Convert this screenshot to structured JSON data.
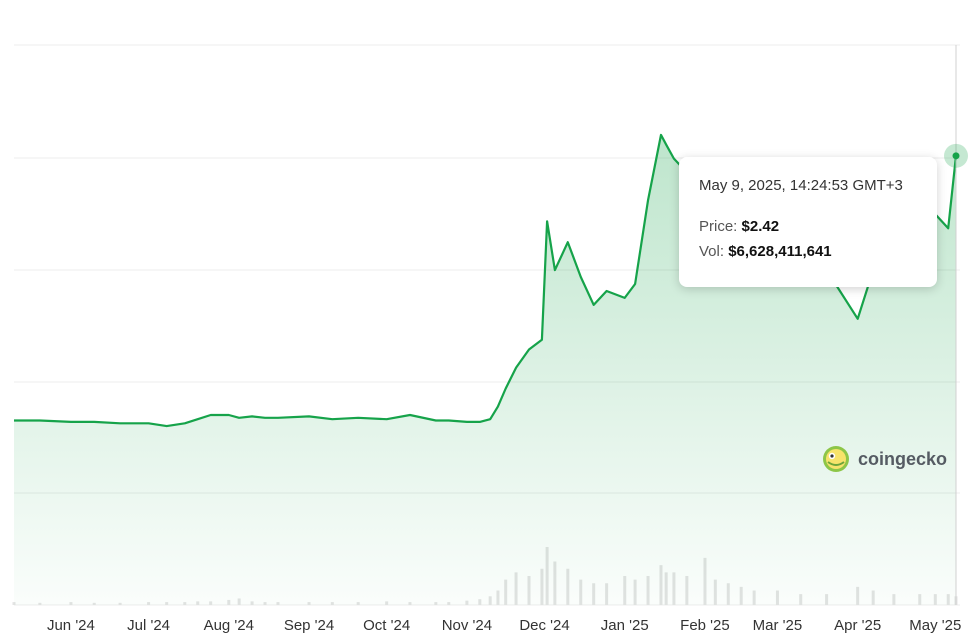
{
  "chart_data": {
    "type": "area",
    "title": "",
    "xlabel": "",
    "ylabel": "",
    "x_ticks": [
      "Jun '24",
      "Jul '24",
      "Aug '24",
      "Sep '24",
      "Oct '24",
      "Nov '24",
      "Dec '24",
      "Jan '25",
      "Feb '25",
      "Mar '25",
      "Apr '25",
      "May '25"
    ],
    "x": [
      "2024-05-10",
      "2024-05-20",
      "2024-06-01",
      "2024-06-10",
      "2024-06-20",
      "2024-07-01",
      "2024-07-08",
      "2024-07-15",
      "2024-07-20",
      "2024-07-25",
      "2024-08-01",
      "2024-08-05",
      "2024-08-10",
      "2024-08-15",
      "2024-08-20",
      "2024-09-01",
      "2024-09-10",
      "2024-09-20",
      "2024-10-01",
      "2024-10-10",
      "2024-10-20",
      "2024-10-25",
      "2024-11-01",
      "2024-11-06",
      "2024-11-10",
      "2024-11-13",
      "2024-11-16",
      "2024-11-20",
      "2024-11-25",
      "2024-11-30",
      "2024-12-02",
      "2024-12-05",
      "2024-12-10",
      "2024-12-15",
      "2024-12-20",
      "2024-12-25",
      "2025-01-01",
      "2025-01-05",
      "2025-01-10",
      "2025-01-15",
      "2025-01-17",
      "2025-01-20",
      "2025-01-25",
      "2025-02-01",
      "2025-02-05",
      "2025-02-10",
      "2025-02-15",
      "2025-02-20",
      "2025-03-01",
      "2025-03-10",
      "2025-03-20",
      "2025-04-01",
      "2025-04-07",
      "2025-04-15",
      "2025-04-25",
      "2025-05-01",
      "2025-05-06",
      "2025-05-09"
    ],
    "series": [
      {
        "values": [
          0.52,
          0.52,
          0.51,
          0.51,
          0.5,
          0.5,
          0.48,
          0.5,
          0.53,
          0.56,
          0.56,
          0.54,
          0.55,
          0.54,
          0.54,
          0.55,
          0.53,
          0.54,
          0.53,
          0.56,
          0.52,
          0.52,
          0.51,
          0.51,
          0.53,
          0.62,
          0.75,
          0.9,
          1.03,
          1.1,
          1.95,
          1.6,
          1.8,
          1.55,
          1.35,
          1.45,
          1.4,
          1.5,
          2.1,
          2.57,
          2.5,
          2.4,
          2.3,
          2.2,
          2.05,
          2.1,
          2.0,
          1.95,
          1.9,
          1.7,
          1.6,
          1.25,
          1.6,
          1.8,
          1.95,
          2.0,
          1.9,
          2.42
        ]
      }
    ],
    "volume": [
      0.4,
      0.3,
      0.4,
      0.3,
      0.3,
      0.4,
      0.4,
      0.4,
      0.5,
      0.5,
      0.7,
      0.9,
      0.5,
      0.4,
      0.4,
      0.4,
      0.4,
      0.4,
      0.5,
      0.4,
      0.4,
      0.4,
      0.6,
      0.8,
      1.2,
      2.0,
      3.5,
      4.5,
      4.0,
      5.0,
      8.0,
      6.0,
      5.0,
      3.5,
      3.0,
      3.0,
      4.0,
      3.5,
      4.0,
      5.5,
      4.5,
      4.5,
      4.0,
      6.5,
      3.5,
      3.0,
      2.5,
      2.0,
      2.0,
      1.5,
      1.5,
      2.5,
      2.0,
      1.5,
      1.5,
      1.5,
      1.5,
      1.2
    ],
    "ylim": [
      0,
      3.0
    ],
    "grid": true,
    "legend": "none",
    "line_color": "#16a34a",
    "fill_color": "#16a34a"
  },
  "tooltip": {
    "date": "May 9, 2025, 14:24:53 GMT+3",
    "price_label": "Price:",
    "price_value": "$2.42",
    "vol_label": "Vol:",
    "vol_value": "$6,628,411,641"
  },
  "watermark": {
    "brand": "coingecko",
    "logo_icon": "gecko-logo-icon"
  }
}
